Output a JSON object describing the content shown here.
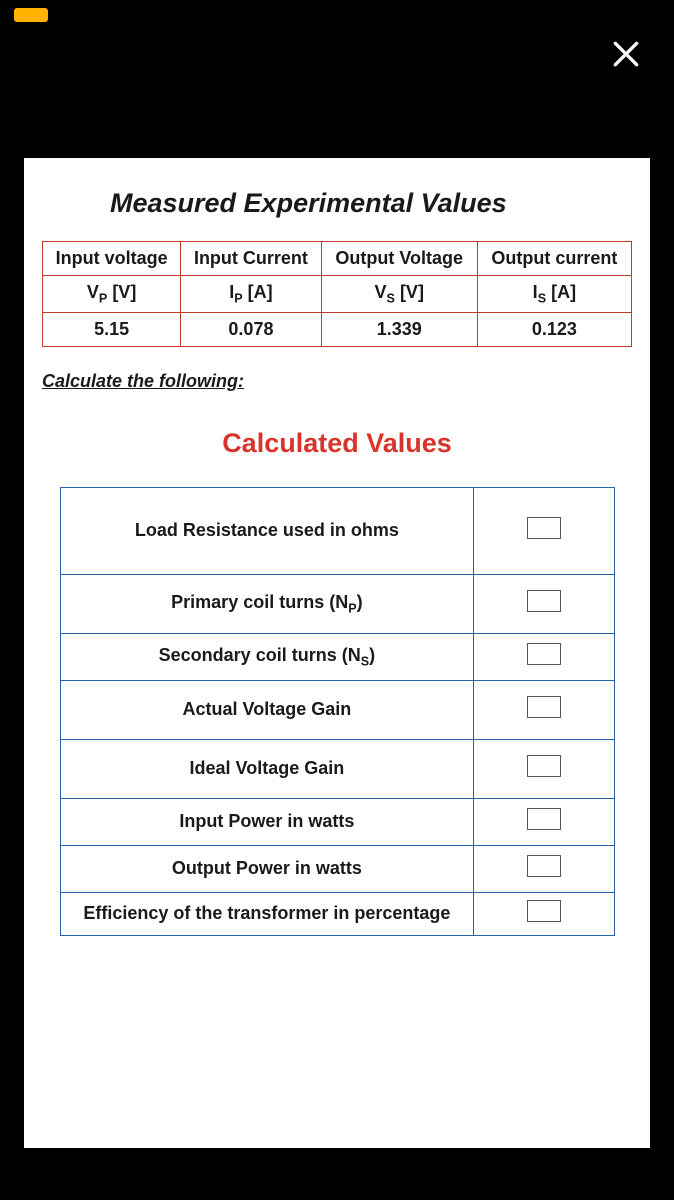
{
  "page_title": "Measured Experimental Values",
  "measured": {
    "border_color": "#c43a2a",
    "columns": [
      {
        "header": "Input voltage",
        "symbol_html": "V<sub>P</sub>  [V]",
        "value": "5.15"
      },
      {
        "header": "Input Current",
        "symbol_html": "I<sub>P</sub> [A]",
        "value": "0.078"
      },
      {
        "header": "Output Voltage",
        "symbol_html": "V<sub>S</sub>  [V]",
        "value": "1.339"
      },
      {
        "header": "Output current",
        "symbol_html": "I<sub>S</sub> [A]",
        "value": "0.123"
      }
    ]
  },
  "instruction": "Calculate the following:",
  "calc_title": "Calculated Values",
  "calc": {
    "border_color": "#2a63a5",
    "rows": [
      {
        "label_html": "Load Resistance used in ohms",
        "row_class": "h-tall"
      },
      {
        "label_html": "Primary coil turns (N<sub>P</sub>)",
        "row_class": "h-med"
      },
      {
        "label_html": "Secondary coil turns (N<sub>S</sub>)",
        "row_class": "h-short"
      },
      {
        "label_html": "Actual Voltage Gain",
        "row_class": "h-med"
      },
      {
        "label_html": "Ideal Voltage Gain",
        "row_class": "h-med"
      },
      {
        "label_html": "Input Power in watts",
        "row_class": "h-short"
      },
      {
        "label_html": "Output Power in watts",
        "row_class": "h-short"
      },
      {
        "label_html": "Efficiency of the transformer in percentage",
        "row_class": "h-vshort"
      }
    ]
  },
  "colors": {
    "background": "#000000",
    "page_bg": "#ffffff",
    "accent_status": "#ffb300",
    "close_icon": "#ffffff",
    "title2_color": "#d9332b",
    "text_color": "#1a1a1a"
  }
}
